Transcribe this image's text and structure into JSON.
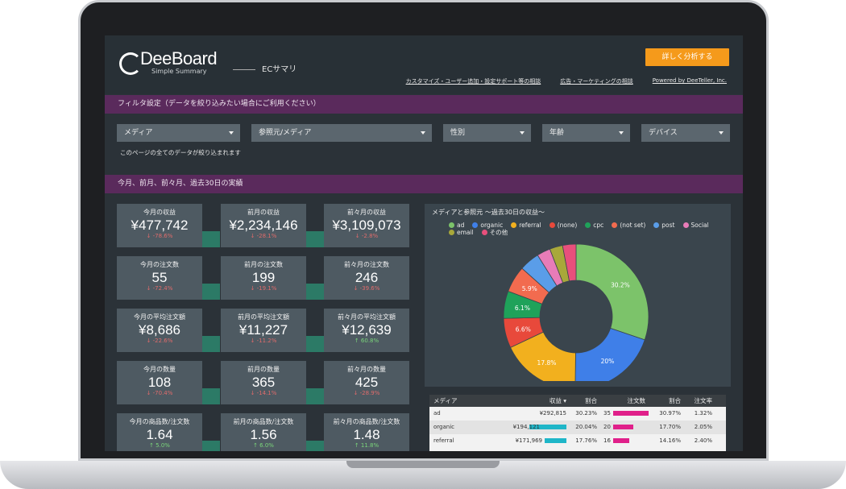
{
  "header": {
    "logo_text": "DeeBoard",
    "logo_sub": "Simple Summary",
    "page_title": "ECサマリ",
    "cta_label": "詳しく分析する",
    "links": [
      "カスタマイズ・ユーザー追加・設定サポート等の相談",
      "広告・マーケティングの相談",
      "Powered by DeeTeller, Inc."
    ]
  },
  "filter_section": {
    "title": "フィルタ設定（データを絞り込みたい場合にご利用ください）",
    "filters": [
      "メディア",
      "参照元/メディア",
      "性別",
      "年齢",
      "デバイス"
    ],
    "note": "このページの全てのデータが絞り込まれます"
  },
  "perf_section": {
    "title": "今月、前月、前々月、過去30日の実績"
  },
  "kpis": [
    [
      {
        "label": "今月の収益",
        "value": "¥477,742",
        "change": "↓ -78.6%"
      },
      {
        "label": "前月の収益",
        "value": "¥2,234,146",
        "change": "↓ -28.1%"
      },
      {
        "label": "前々月の収益",
        "value": "¥3,109,073",
        "change": "↓ -2.8%"
      }
    ],
    [
      {
        "label": "今月の注文数",
        "value": "55",
        "change": "↓ -72.4%"
      },
      {
        "label": "前月の注文数",
        "value": "199",
        "change": "↓ -19.1%"
      },
      {
        "label": "前々月の注文数",
        "value": "246",
        "change": "↓ -39.6%"
      }
    ],
    [
      {
        "label": "今月の平均注文額",
        "value": "¥8,686",
        "change": "↓ -22.6%"
      },
      {
        "label": "前月の平均注文額",
        "value": "¥11,227",
        "change": "↓ -11.2%"
      },
      {
        "label": "前々月の平均注文額",
        "value": "¥12,639",
        "change": "↑ 60.8%"
      }
    ],
    [
      {
        "label": "今月の数量",
        "value": "108",
        "change": "↓ -70.4%"
      },
      {
        "label": "前月の数量",
        "value": "365",
        "change": "↓ -14.1%"
      },
      {
        "label": "前々月の数量",
        "value": "425",
        "change": "↓ -28.9%"
      }
    ],
    [
      {
        "label": "今月の商品数/注文数",
        "value": "1.64",
        "change": "↑ 5.0%"
      },
      {
        "label": "前月の商品数/注文数",
        "value": "1.56",
        "change": "↑ 6.0%"
      },
      {
        "label": "前々月の商品数/注文数",
        "value": "1.48",
        "change": "↑ 11.8%"
      }
    ]
  ],
  "chart": {
    "title": "メディアと参照元 〜過去30日の収益〜",
    "legend": [
      {
        "name": "ad",
        "color": "#7cc36a"
      },
      {
        "name": "organic",
        "color": "#3f7fe8"
      },
      {
        "name": "referral",
        "color": "#f2b01e"
      },
      {
        "name": "(none)",
        "color": "#e8493b"
      },
      {
        "name": "cpc",
        "color": "#1fa25a"
      },
      {
        "name": "(not set)",
        "color": "#f26b4f"
      },
      {
        "name": "post",
        "color": "#5a9de8"
      },
      {
        "name": "Social",
        "color": "#e87cb8"
      },
      {
        "name": "email",
        "color": "#a8a83a"
      },
      {
        "name": "その他",
        "color": "#e8507c"
      }
    ]
  },
  "chart_data": {
    "type": "pie",
    "categories": [
      "ad",
      "organic",
      "referral",
      "(none)",
      "cpc",
      "(not set)",
      "post",
      "Social",
      "email",
      "その他"
    ],
    "values": [
      30.2,
      20,
      17.8,
      6.6,
      6.1,
      5.9,
      4.5,
      3.0,
      2.9,
      3.0
    ],
    "labels": [
      "30.2%",
      "20%",
      "17.8%",
      "6.6%",
      "6.1%",
      "5.9%",
      "",
      "",
      "",
      ""
    ]
  },
  "table": {
    "headers": [
      "メディア",
      "収益 ▾",
      "割合",
      "注文数",
      "割合",
      "注文率"
    ],
    "rows": [
      {
        "media": "ad",
        "revenue": "¥292,815",
        "rev_share": "30.23%",
        "orders": "35",
        "ord_share": "30.97%",
        "rate": "1.32%",
        "rev_frac": 1.0,
        "ord_frac": 1.0
      },
      {
        "media": "organic",
        "revenue": "¥194,121",
        "rev_share": "20.04%",
        "orders": "20",
        "ord_share": "17.70%",
        "rate": "2.05%",
        "rev_frac": 0.66,
        "ord_frac": 0.57
      },
      {
        "media": "referral",
        "revenue": "¥171,969",
        "rev_share": "17.76%",
        "orders": "16",
        "ord_share": "14.16%",
        "rate": "2.40%",
        "rev_frac": 0.59,
        "ord_frac": 0.46
      }
    ]
  }
}
